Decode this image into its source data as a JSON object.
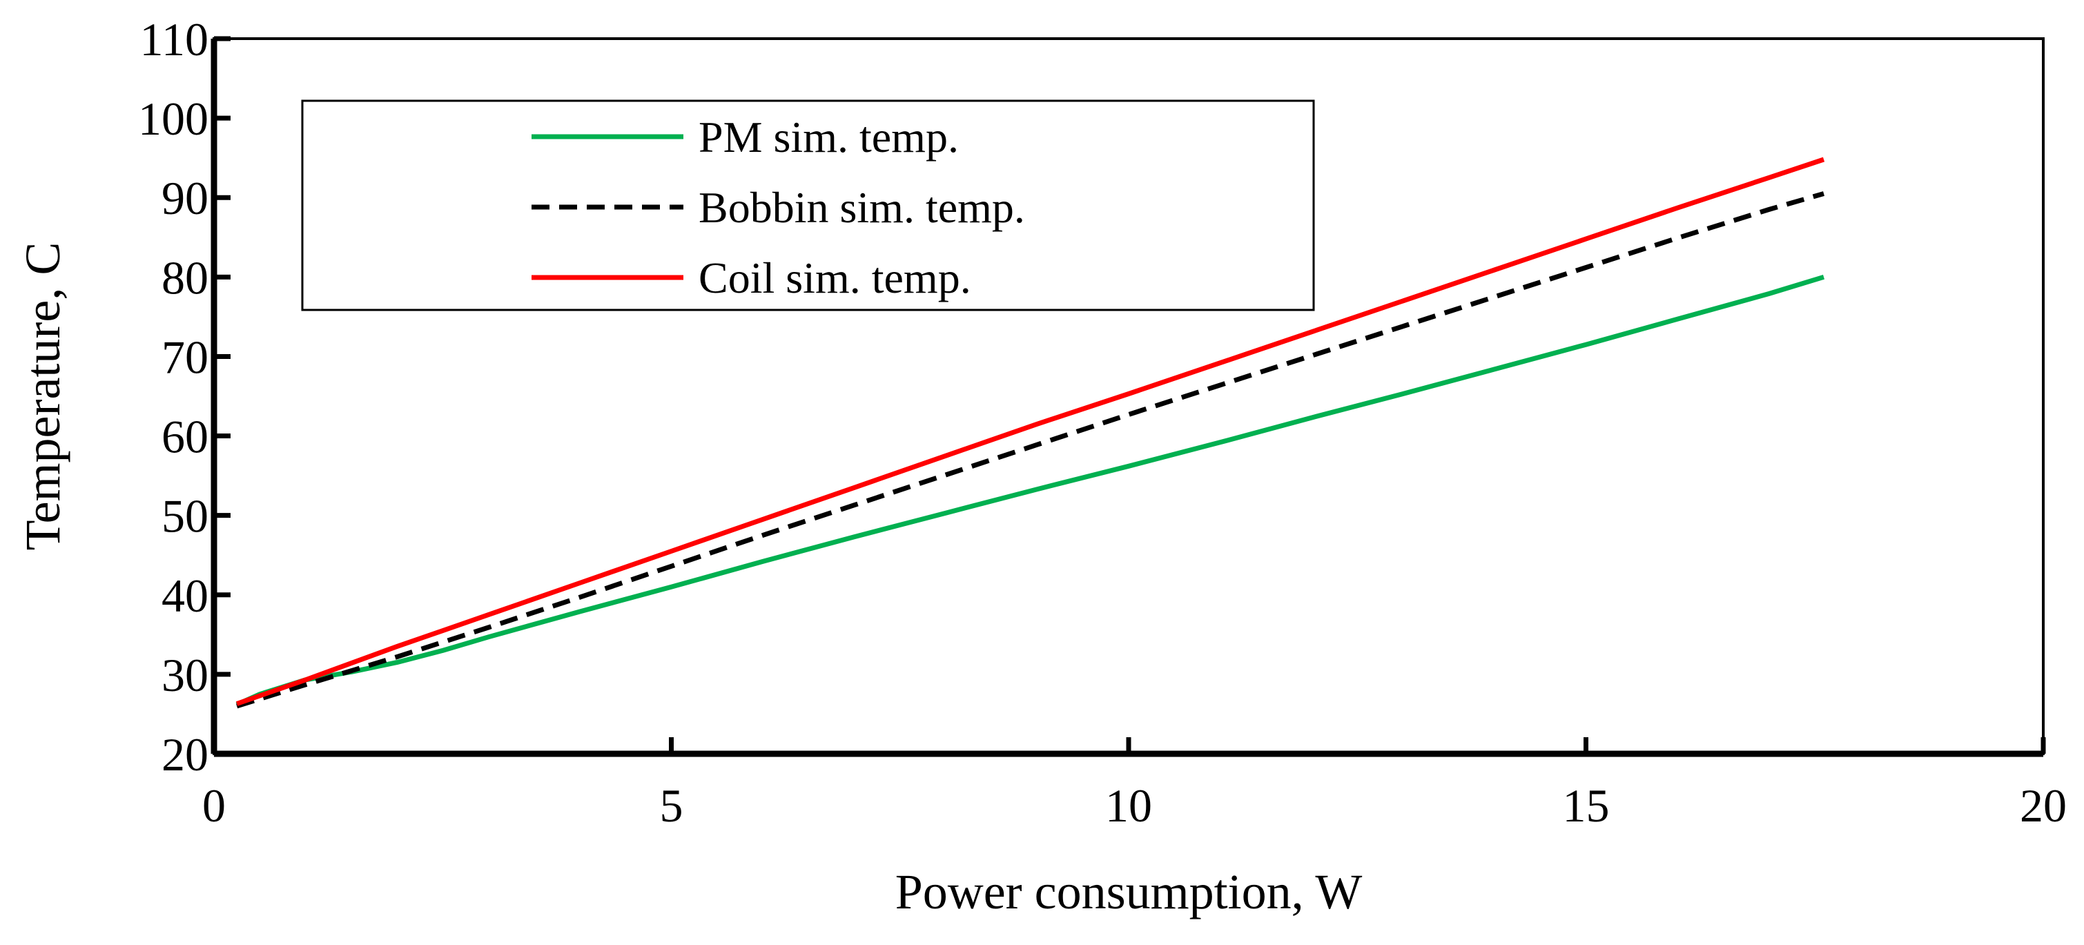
{
  "chart_data": {
    "type": "line",
    "title": "",
    "xlabel": "Power consumption, W",
    "ylabel": "Temperature, C",
    "xlim": [
      0,
      20
    ],
    "ylim": [
      20,
      110
    ],
    "xticks": [
      0,
      5,
      10,
      15,
      20
    ],
    "yticks": [
      20,
      30,
      40,
      50,
      60,
      70,
      80,
      90,
      100,
      110
    ],
    "grid": false,
    "legend_position": "top-left",
    "series": [
      {
        "name": "PM sim. temp.",
        "color": "#00b050",
        "dash": "solid",
        "x": [
          0.25,
          0.5,
          1.0,
          1.5,
          2.0,
          2.5,
          3.0,
          4.0,
          5.0,
          6.0,
          7.0,
          8.0,
          9.0,
          10.0,
          11.0,
          12.0,
          13.0,
          14.0,
          15.0,
          16.0,
          17.0,
          17.6
        ],
        "y": [
          26.2,
          27.5,
          29.3,
          30.3,
          31.5,
          33.0,
          34.7,
          37.9,
          41.0,
          44.2,
          47.3,
          50.3,
          53.3,
          56.2,
          59.2,
          62.3,
          65.3,
          68.4,
          71.5,
          74.7,
          77.9,
          80.0
        ]
      },
      {
        "name": "Bobbin sim. temp.",
        "color": "#000000",
        "dash": "dashed",
        "x": [
          0.25,
          1.0,
          2.0,
          3.0,
          4.0,
          5.0,
          6.0,
          7.0,
          8.0,
          9.0,
          10.0,
          11.0,
          12.0,
          13.0,
          14.0,
          15.0,
          16.0,
          17.0,
          17.6
        ],
        "y": [
          26.0,
          28.7,
          32.2,
          35.9,
          39.7,
          43.6,
          47.5,
          51.3,
          55.1,
          58.9,
          62.7,
          66.4,
          70.1,
          73.8,
          77.5,
          81.2,
          84.9,
          88.5,
          90.5
        ]
      },
      {
        "name": "Coil sim. temp.",
        "color": "#ff0000",
        "dash": "solid",
        "x": [
          0.25,
          1.0,
          2.0,
          3.0,
          4.0,
          5.0,
          6.0,
          7.0,
          8.0,
          9.0,
          10.0,
          11.0,
          12.0,
          13.0,
          14.0,
          15.0,
          16.0,
          17.0,
          17.6
        ],
        "y": [
          26.3,
          29.3,
          33.5,
          37.5,
          41.5,
          45.5,
          49.5,
          53.5,
          57.5,
          61.5,
          65.3,
          69.2,
          73.1,
          77.0,
          80.9,
          84.8,
          88.7,
          92.5,
          94.8
        ]
      }
    ]
  }
}
